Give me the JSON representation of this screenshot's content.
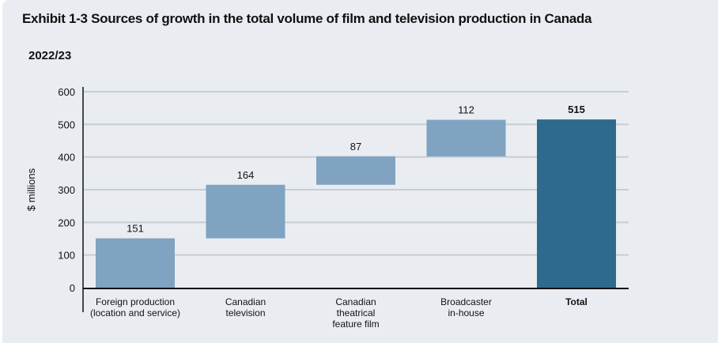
{
  "title": "Exhibit 1-3  Sources of growth in the total volume of film and television production in Canada",
  "subtitle": "2022/23",
  "chart_data": {
    "type": "bar",
    "subtype": "waterfall",
    "title": "Exhibit 1-3  Sources of growth in the total volume of film and television production in Canada",
    "subtitle": "2022/23",
    "xlabel": "",
    "ylabel": "$ millions",
    "ylim": [
      0,
      600
    ],
    "yticks": [
      0,
      100,
      200,
      300,
      400,
      500,
      600
    ],
    "grid": true,
    "categories": [
      [
        "Foreign production",
        "(location and service)"
      ],
      [
        "Canadian",
        "television"
      ],
      [
        "Canadian",
        "theatrical",
        "feature film"
      ],
      [
        "Broadcaster",
        "in-house"
      ],
      [
        "Total"
      ]
    ],
    "values": [
      151,
      164,
      87,
      112,
      515
    ],
    "data_labels": [
      "151",
      "164",
      "87",
      "112",
      "515"
    ],
    "is_total": [
      false,
      false,
      false,
      false,
      true
    ],
    "colors": {
      "increment": "#7fa3c0",
      "total": "#2e6a8e",
      "grid": "#c8cdd3",
      "axis": "#111111"
    }
  }
}
